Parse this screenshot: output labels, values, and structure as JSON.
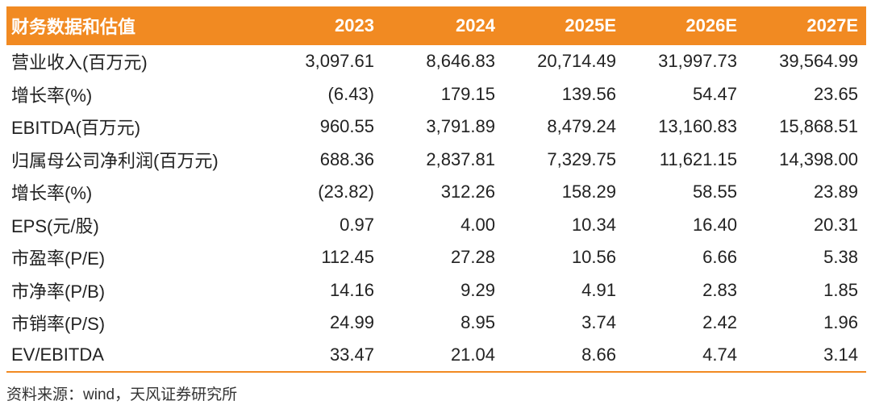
{
  "table": {
    "header": {
      "label": "财务数据和估值",
      "years": [
        "2023",
        "2024",
        "2025E",
        "2026E",
        "2027E"
      ]
    },
    "rows": [
      {
        "label": "营业收入(百万元)",
        "values": [
          "3,097.61",
          "8,646.83",
          "20,714.49",
          "31,997.73",
          "39,564.99"
        ]
      },
      {
        "label": "增长率(%)",
        "values": [
          "(6.43)",
          "179.15",
          "139.56",
          "54.47",
          "23.65"
        ]
      },
      {
        "label": "EBITDA(百万元)",
        "values": [
          "960.55",
          "3,791.89",
          "8,479.24",
          "13,160.83",
          "15,868.51"
        ]
      },
      {
        "label": "归属母公司净利润(百万元)",
        "values": [
          "688.36",
          "2,837.81",
          "7,329.75",
          "11,621.15",
          "14,398.00"
        ]
      },
      {
        "label": "增长率(%)",
        "values": [
          "(23.82)",
          "312.26",
          "158.29",
          "58.55",
          "23.89"
        ]
      },
      {
        "label": "EPS(元/股)",
        "values": [
          "0.97",
          "4.00",
          "10.34",
          "16.40",
          "20.31"
        ]
      },
      {
        "label": "市盈率(P/E)",
        "values": [
          "112.45",
          "27.28",
          "10.56",
          "6.66",
          "5.38"
        ]
      },
      {
        "label": "市净率(P/B)",
        "values": [
          "14.16",
          "9.29",
          "4.91",
          "2.83",
          "1.85"
        ]
      },
      {
        "label": "市销率(P/S)",
        "values": [
          "24.99",
          "8.95",
          "3.74",
          "2.42",
          "1.96"
        ]
      },
      {
        "label": "EV/EBITDA",
        "values": [
          "33.47",
          "21.04",
          "8.66",
          "4.74",
          "3.14"
        ]
      }
    ]
  },
  "source": "资料来源：wind，天风证券研究所",
  "colors": {
    "header_bg": "#f18a22",
    "header_text": "#ffffff",
    "body_text": "#222222"
  }
}
